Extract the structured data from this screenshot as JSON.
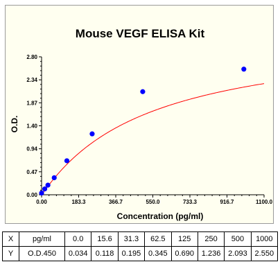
{
  "chart_data": {
    "type": "scatter",
    "title": "Mouse VEGF ELISA Kit",
    "xlabel": "Concentration (pg/ml)",
    "ylabel": "O.D.",
    "xlim": [
      0,
      1100
    ],
    "ylim": [
      0,
      2.8
    ],
    "x_ticks": [
      "0.00",
      "183.3",
      "366.7",
      "550.0",
      "733.3",
      "916.7",
      "1100.0"
    ],
    "y_ticks": [
      "0.00",
      "0.47",
      "0.94",
      "1.40",
      "1.87",
      "2.34",
      "2.80"
    ],
    "grid": false,
    "series": [
      {
        "x": [
          0.0,
          15.6,
          31.3,
          62.5,
          125,
          250,
          500,
          1000
        ],
        "y": [
          0.034,
          0.118,
          0.195,
          0.345,
          0.69,
          1.236,
          2.093,
          2.55
        ]
      }
    ],
    "fit": {
      "curve": "four-parameter logistic",
      "color": "#ff0000",
      "x_end": 1100,
      "y_at_end": 2.6
    },
    "point_color": "#0000ff",
    "background": "#fffff0"
  },
  "table": {
    "x_row": {
      "label": "X",
      "unit": "pg/ml",
      "values": [
        "0.0",
        "15.6",
        "31.3",
        "62.5",
        "125",
        "250",
        "500",
        "1000"
      ]
    },
    "y_row": {
      "label": "Y",
      "unit": "O.D.450",
      "values": [
        "0.034",
        "0.118",
        "0.195",
        "0.345",
        "0.690",
        "1.236",
        "2.093",
        "2.550"
      ]
    }
  }
}
